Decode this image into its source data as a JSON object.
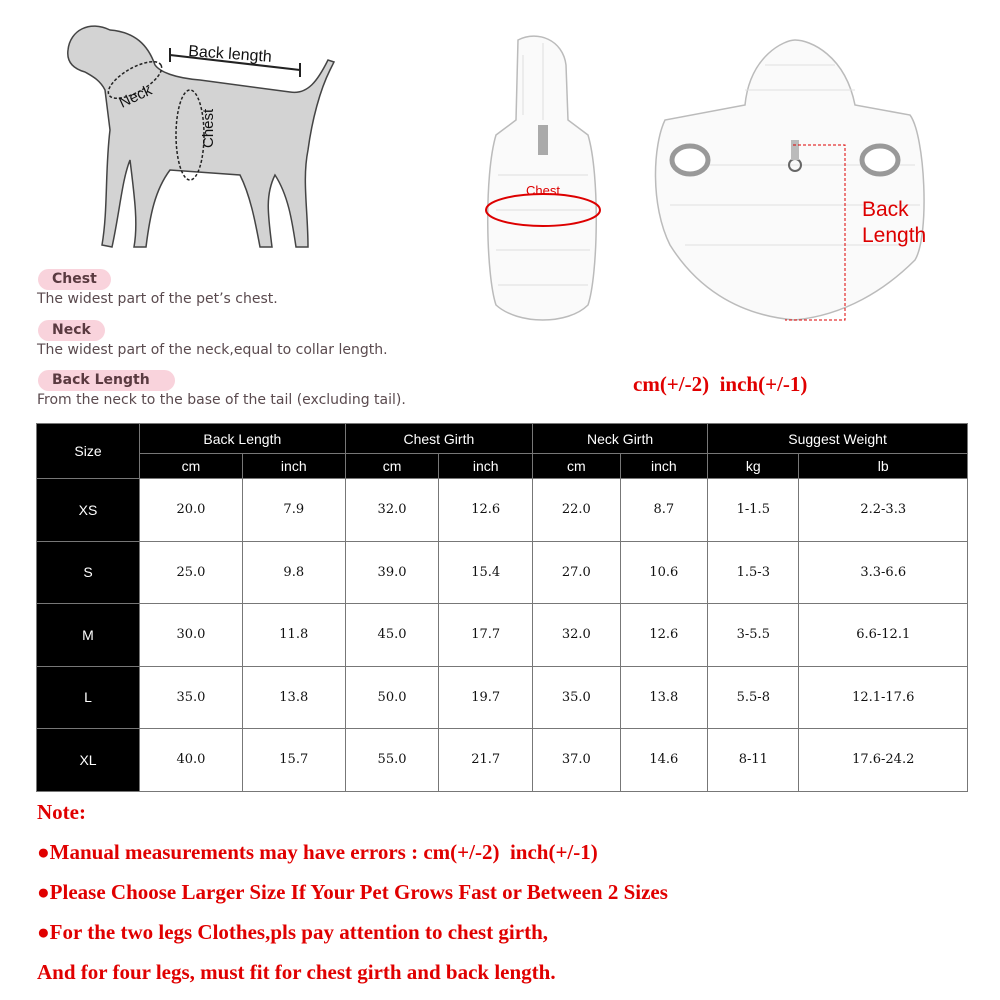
{
  "diagram_labels": {
    "back_length": "Back length",
    "neck": "Neck",
    "chest": "Chest",
    "coat_chest": "Chest",
    "coat_back_length_1": "Back",
    "coat_back_length_2": "Length"
  },
  "definitions": [
    {
      "term": "Chest",
      "text": "The widest part of the pet’s chest."
    },
    {
      "term": "Neck",
      "text": "The widest part of the neck,equal to collar length."
    },
    {
      "term": "Back Length",
      "text": "From the neck to the base of the tail (excluding tail)."
    }
  ],
  "tolerance": "cm(+/-2)  inch(+/-1)",
  "table": {
    "size_header": "Size",
    "groups": [
      "Back Length",
      "Chest Girth",
      "Neck Girth",
      "Suggest Weight"
    ],
    "units": [
      "cm",
      "inch",
      "cm",
      "inch",
      "cm",
      "inch",
      "kg",
      "lb"
    ],
    "rows": [
      {
        "size": "XS",
        "values": [
          "20.0",
          "7.9",
          "32.0",
          "12.6",
          "22.0",
          "8.7",
          "1-1.5",
          "2.2-3.3"
        ]
      },
      {
        "size": "S",
        "values": [
          "25.0",
          "9.8",
          "39.0",
          "15.4",
          "27.0",
          "10.6",
          "1.5-3",
          "3.3-6.6"
        ]
      },
      {
        "size": "M",
        "values": [
          "30.0",
          "11.8",
          "45.0",
          "17.7",
          "32.0",
          "12.6",
          "3-5.5",
          "6.6-12.1"
        ]
      },
      {
        "size": "L",
        "values": [
          "35.0",
          "13.8",
          "50.0",
          "19.7",
          "35.0",
          "13.8",
          "5.5-8",
          "12.1-17.6"
        ]
      },
      {
        "size": "XL",
        "values": [
          "40.0",
          "15.7",
          "55.0",
          "21.7",
          "37.0",
          "14.6",
          "8-11",
          "17.6-24.2"
        ]
      }
    ]
  },
  "notes": {
    "title": "Note:",
    "lines": [
      "●Manual measurements may have errors : cm(+/-2)  inch(+/-1)",
      "●Please Choose Larger Size If Your Pet Grows Fast or Between 2 Sizes",
      "●For the two legs Clothes,pls pay attention to chest girth,",
      "And for four legs, must fit for chest girth and back length."
    ]
  },
  "colors": {
    "accent_red": "#e00000",
    "pill": "#f9d3dc",
    "header_bg": "#000000"
  }
}
